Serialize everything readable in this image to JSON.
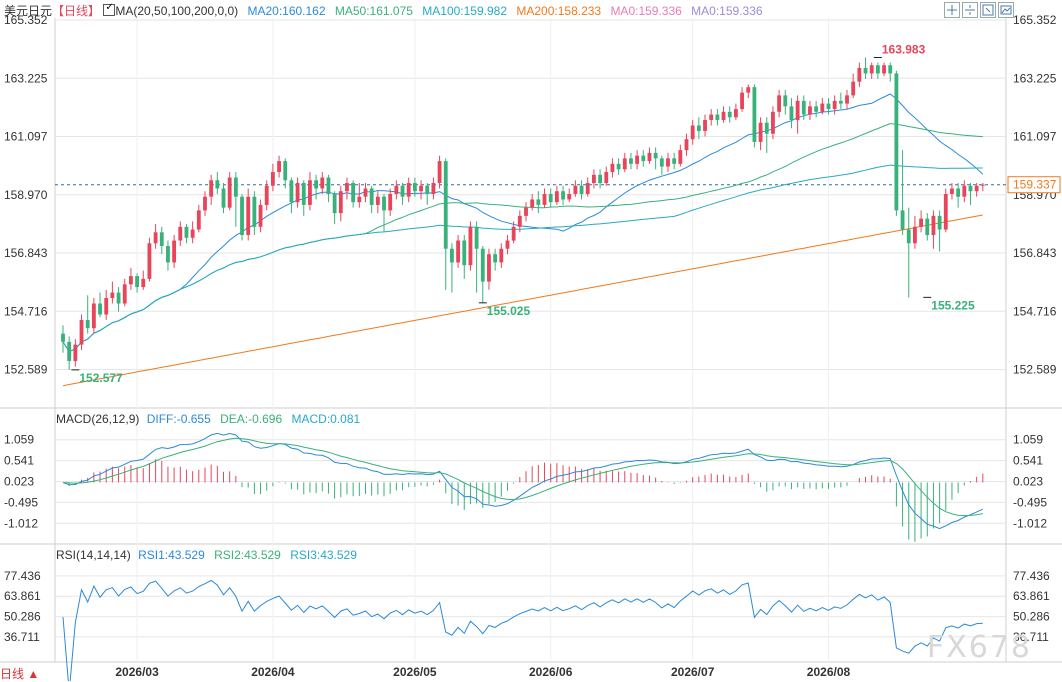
{
  "header": {
    "symbol": "美元日元",
    "period_tag": "【日线】",
    "ma_label": "MA(20,50,100,200,0,0)",
    "ma20": "MA20:160.162",
    "ma50": "MA50:161.075",
    "ma100": "MA100:159.982",
    "ma200": "MA200:158.233",
    "ma0a": "MA0:159.336",
    "ma0b": "MA0:159.336"
  },
  "colors": {
    "up": "#e8445a",
    "down": "#39b17a",
    "ma20": "#2b8ad8",
    "ma50": "#39b17a",
    "ma100": "#27a9c7",
    "ma200": "#f07a1a",
    "ma0a": "#e87bb8",
    "ma0b": "#9e8ad8",
    "grid": "#e6e6e6",
    "text": "#333333"
  },
  "toolbar_icons": [
    "zoom-in-icon",
    "zoom-out-icon",
    "fit-icon",
    "screenshot-icon"
  ],
  "bottom": {
    "period_button": "日线 ▲"
  },
  "watermark": "FX678",
  "chart_data": [
    {
      "type": "candlestick",
      "panel": "price",
      "y_ticks": [
        "165.352",
        "163.225",
        "161.097",
        "158.970",
        "156.843",
        "154.716",
        "152.589"
      ],
      "ylim": [
        151.55,
        165.352
      ],
      "x_labels": [
        "2026/03",
        "2026/04",
        "2026/05",
        "2026/06",
        "2026/07",
        "2026/08"
      ],
      "last_price": "159.337",
      "annotations": [
        {
          "text": "163.983",
          "value": 163.983,
          "index": 132,
          "kind": "high"
        },
        {
          "text": "155.025",
          "value": 155.025,
          "index": 68,
          "kind": "low"
        },
        {
          "text": "155.225",
          "value": 155.225,
          "index": 140,
          "kind": "low"
        },
        {
          "text": "152.577",
          "value": 152.577,
          "index": 2,
          "kind": "low"
        }
      ],
      "candles": [
        [
          153.9,
          153.6,
          154.2,
          153.2
        ],
        [
          153.6,
          152.9,
          153.8,
          152.577
        ],
        [
          152.9,
          153.5,
          153.7,
          152.7
        ],
        [
          153.5,
          154.4,
          154.6,
          153.3
        ],
        [
          154.4,
          154.1,
          155.3,
          153.9
        ],
        [
          154.1,
          155.0,
          155.2,
          153.9
        ],
        [
          155.0,
          154.6,
          155.4,
          154.5
        ],
        [
          154.6,
          155.2,
          155.5,
          154.4
        ],
        [
          155.2,
          155.4,
          155.8,
          155.0
        ],
        [
          155.4,
          155.0,
          155.6,
          154.7
        ],
        [
          155.0,
          155.7,
          155.9,
          154.9
        ],
        [
          155.7,
          156.0,
          156.3,
          155.5
        ],
        [
          156.0,
          155.6,
          156.1,
          155.4
        ],
        [
          155.6,
          155.9,
          156.2,
          155.5
        ],
        [
          155.9,
          157.2,
          157.4,
          155.8
        ],
        [
          157.2,
          157.6,
          157.9,
          157.0
        ],
        [
          157.6,
          157.1,
          157.8,
          156.8
        ],
        [
          157.1,
          156.5,
          157.3,
          156.2
        ],
        [
          156.5,
          157.3,
          157.5,
          156.3
        ],
        [
          157.3,
          157.8,
          158.0,
          157.1
        ],
        [
          157.8,
          157.4,
          157.9,
          157.2
        ],
        [
          157.4,
          157.7,
          158.0,
          157.2
        ],
        [
          157.7,
          158.4,
          158.6,
          157.6
        ],
        [
          158.4,
          158.9,
          159.1,
          158.2
        ],
        [
          158.9,
          159.5,
          159.7,
          158.6
        ],
        [
          159.5,
          159.2,
          159.8,
          159.0
        ],
        [
          159.2,
          158.5,
          159.4,
          158.3
        ],
        [
          158.5,
          159.6,
          159.8,
          158.4
        ],
        [
          159.6,
          158.9,
          159.8,
          157.8
        ],
        [
          158.9,
          157.5,
          159.0,
          157.3
        ],
        [
          157.5,
          158.9,
          159.2,
          157.3
        ],
        [
          158.9,
          157.8,
          159.1,
          157.5
        ],
        [
          157.8,
          158.6,
          158.8,
          157.6
        ],
        [
          158.6,
          159.3,
          159.5,
          158.4
        ],
        [
          159.3,
          159.8,
          160.1,
          159.1
        ],
        [
          159.8,
          160.2,
          160.4,
          159.6
        ],
        [
          160.2,
          159.5,
          160.3,
          159.2
        ],
        [
          159.5,
          158.7,
          159.6,
          158.3
        ],
        [
          158.7,
          159.4,
          159.6,
          158.5
        ],
        [
          159.4,
          158.6,
          159.5,
          158.2
        ],
        [
          158.6,
          159.5,
          159.8,
          158.4
        ],
        [
          159.5,
          159.2,
          159.7,
          158.8
        ],
        [
          159.2,
          159.6,
          159.8,
          159.0
        ],
        [
          159.6,
          159.0,
          159.7,
          158.7
        ],
        [
          159.0,
          158.3,
          159.1,
          157.9
        ],
        [
          158.3,
          159.1,
          159.3,
          158.0
        ],
        [
          159.1,
          159.4,
          159.6,
          158.8
        ],
        [
          159.4,
          158.7,
          159.5,
          158.5
        ],
        [
          158.7,
          158.9,
          159.4,
          158.5
        ],
        [
          158.9,
          159.2,
          159.4,
          158.7
        ],
        [
          159.2,
          158.6,
          159.3,
          158.3
        ],
        [
          158.6,
          158.9,
          159.1,
          158.3
        ],
        [
          158.9,
          158.4,
          159.0,
          157.6
        ],
        [
          158.4,
          159.0,
          159.2,
          158.2
        ],
        [
          159.0,
          159.3,
          159.5,
          158.8
        ],
        [
          159.3,
          158.9,
          159.4,
          158.6
        ],
        [
          158.9,
          159.4,
          159.6,
          158.7
        ],
        [
          159.4,
          159.1,
          159.6,
          158.9
        ],
        [
          159.1,
          159.3,
          159.5,
          158.8
        ],
        [
          159.3,
          159.0,
          159.4,
          158.6
        ],
        [
          159.0,
          159.4,
          159.6,
          158.8
        ],
        [
          159.4,
          160.2,
          160.4,
          159.2
        ],
        [
          160.2,
          157.0,
          160.3,
          155.5
        ],
        [
          157.0,
          156.5,
          157.2,
          155.4
        ],
        [
          156.5,
          157.3,
          157.5,
          156.3
        ],
        [
          157.3,
          156.4,
          157.5,
          155.9
        ],
        [
          156.4,
          157.8,
          158.0,
          156.2
        ],
        [
          157.8,
          157.0,
          158.0,
          155.4
        ],
        [
          157.0,
          155.8,
          157.1,
          155.025
        ],
        [
          155.8,
          156.8,
          157.0,
          155.5
        ],
        [
          156.8,
          156.5,
          157.0,
          156.2
        ],
        [
          156.5,
          157.0,
          157.2,
          156.3
        ],
        [
          157.0,
          157.3,
          157.5,
          156.8
        ],
        [
          157.3,
          157.8,
          158.0,
          157.2
        ],
        [
          157.8,
          158.2,
          158.4,
          157.6
        ],
        [
          158.2,
          158.5,
          158.7,
          158.0
        ],
        [
          158.5,
          158.8,
          159.0,
          158.4
        ],
        [
          158.8,
          158.6,
          159.1,
          158.3
        ],
        [
          158.6,
          159.0,
          159.2,
          158.5
        ],
        [
          159.0,
          158.7,
          159.2,
          158.5
        ],
        [
          158.7,
          159.1,
          159.3,
          158.6
        ],
        [
          159.1,
          158.8,
          159.3,
          158.6
        ],
        [
          158.8,
          159.0,
          159.2,
          158.7
        ],
        [
          159.0,
          159.3,
          159.5,
          158.9
        ],
        [
          159.3,
          159.0,
          159.5,
          158.8
        ],
        [
          159.0,
          159.4,
          159.6,
          158.9
        ],
        [
          159.4,
          159.7,
          159.9,
          159.2
        ],
        [
          159.7,
          159.4,
          159.9,
          159.2
        ],
        [
          159.4,
          159.8,
          160.0,
          159.3
        ],
        [
          159.8,
          160.1,
          160.3,
          159.6
        ],
        [
          160.1,
          159.9,
          160.3,
          159.7
        ],
        [
          159.9,
          160.3,
          160.5,
          159.8
        ],
        [
          160.3,
          160.1,
          160.5,
          159.9
        ],
        [
          160.1,
          160.4,
          160.6,
          159.9
        ],
        [
          160.4,
          160.2,
          160.6,
          160.0
        ],
        [
          160.2,
          160.5,
          160.7,
          160.1
        ],
        [
          160.5,
          160.3,
          160.7,
          159.9
        ],
        [
          160.3,
          160.0,
          160.4,
          159.7
        ],
        [
          160.0,
          160.3,
          160.5,
          159.8
        ],
        [
          160.3,
          160.1,
          160.5,
          159.9
        ],
        [
          160.1,
          160.6,
          160.8,
          160.0
        ],
        [
          160.6,
          161.0,
          161.2,
          160.4
        ],
        [
          161.0,
          161.5,
          161.7,
          160.8
        ],
        [
          161.5,
          161.3,
          161.8,
          161.0
        ],
        [
          161.3,
          161.7,
          161.9,
          161.1
        ],
        [
          161.7,
          161.9,
          162.1,
          161.5
        ],
        [
          161.9,
          161.7,
          162.1,
          161.5
        ],
        [
          161.7,
          162.0,
          162.2,
          161.6
        ],
        [
          162.0,
          161.8,
          162.2,
          161.6
        ],
        [
          161.8,
          162.1,
          162.3,
          161.7
        ],
        [
          162.1,
          162.7,
          162.9,
          162.0
        ],
        [
          162.7,
          162.9,
          163.0,
          162.5
        ],
        [
          162.9,
          160.9,
          163.0,
          160.7
        ],
        [
          160.9,
          161.6,
          161.8,
          160.6
        ],
        [
          161.6,
          161.2,
          161.8,
          160.5
        ],
        [
          161.2,
          162.0,
          162.2,
          161.0
        ],
        [
          162.0,
          162.6,
          162.8,
          161.8
        ],
        [
          162.6,
          162.2,
          162.8,
          161.9
        ],
        [
          162.2,
          161.7,
          162.5,
          161.4
        ],
        [
          161.7,
          162.4,
          162.6,
          161.2
        ],
        [
          162.4,
          161.9,
          162.6,
          161.7
        ],
        [
          161.9,
          162.2,
          162.4,
          161.7
        ],
        [
          162.2,
          162.0,
          162.4,
          161.8
        ],
        [
          162.0,
          162.3,
          162.5,
          161.9
        ],
        [
          162.3,
          162.1,
          162.5,
          161.9
        ],
        [
          162.1,
          162.4,
          162.6,
          161.9
        ],
        [
          162.4,
          162.3,
          162.7,
          162.1
        ],
        [
          162.3,
          162.6,
          162.8,
          162.1
        ],
        [
          162.6,
          163.1,
          163.4,
          162.5
        ],
        [
          163.1,
          163.6,
          163.8,
          162.9
        ],
        [
          163.6,
          163.4,
          163.983,
          163.2
        ],
        [
          163.4,
          163.7,
          163.8,
          163.2
        ],
        [
          163.7,
          163.4,
          163.8,
          163.2
        ],
        [
          163.4,
          163.7,
          163.8,
          163.3
        ],
        [
          163.7,
          163.4,
          163.8,
          163.1
        ],
        [
          163.4,
          158.4,
          163.5,
          158.2
        ],
        [
          158.4,
          157.7,
          160.6,
          157.5
        ],
        [
          157.7,
          157.2,
          158.5,
          155.225
        ],
        [
          157.2,
          157.8,
          158.2,
          157.0
        ],
        [
          157.8,
          158.1,
          158.4,
          157.6
        ],
        [
          158.1,
          157.5,
          158.3,
          157.3
        ],
        [
          157.5,
          158.2,
          158.4,
          157.0
        ],
        [
          158.2,
          157.7,
          158.4,
          156.9
        ],
        [
          157.7,
          159.0,
          159.2,
          157.6
        ],
        [
          159.0,
          159.2,
          159.4,
          158.8
        ],
        [
          159.2,
          158.9,
          159.4,
          158.5
        ],
        [
          158.9,
          159.3,
          159.5,
          158.7
        ],
        [
          159.3,
          159.1,
          159.4,
          158.6
        ],
        [
          159.1,
          159.3,
          159.4,
          158.9
        ],
        [
          159.3,
          159.337,
          159.4,
          159.1
        ]
      ]
    },
    {
      "type": "bar_line",
      "panel": "macd",
      "label": "MACD(26,12,9)",
      "diff_label": "DIFF:-0.655",
      "dea_label": "DEA:-0.696",
      "macd_label": "MACD:0.081",
      "y_ticks": [
        "1.059",
        "0.541",
        "0.023",
        "-0.495",
        "-1.012"
      ],
      "ylim": [
        -1.55,
        1.35
      ]
    },
    {
      "type": "line",
      "panel": "rsi",
      "label": "RSI(14,14,14)",
      "rsi1_label": "RSI1:43.529",
      "rsi2_label": "RSI2:43.529",
      "rsi3_label": "RSI3:43.529",
      "y_ticks": [
        "77.436",
        "63.861",
        "50.286",
        "36.711"
      ],
      "ylim": [
        20.0,
        84.0
      ]
    }
  ]
}
